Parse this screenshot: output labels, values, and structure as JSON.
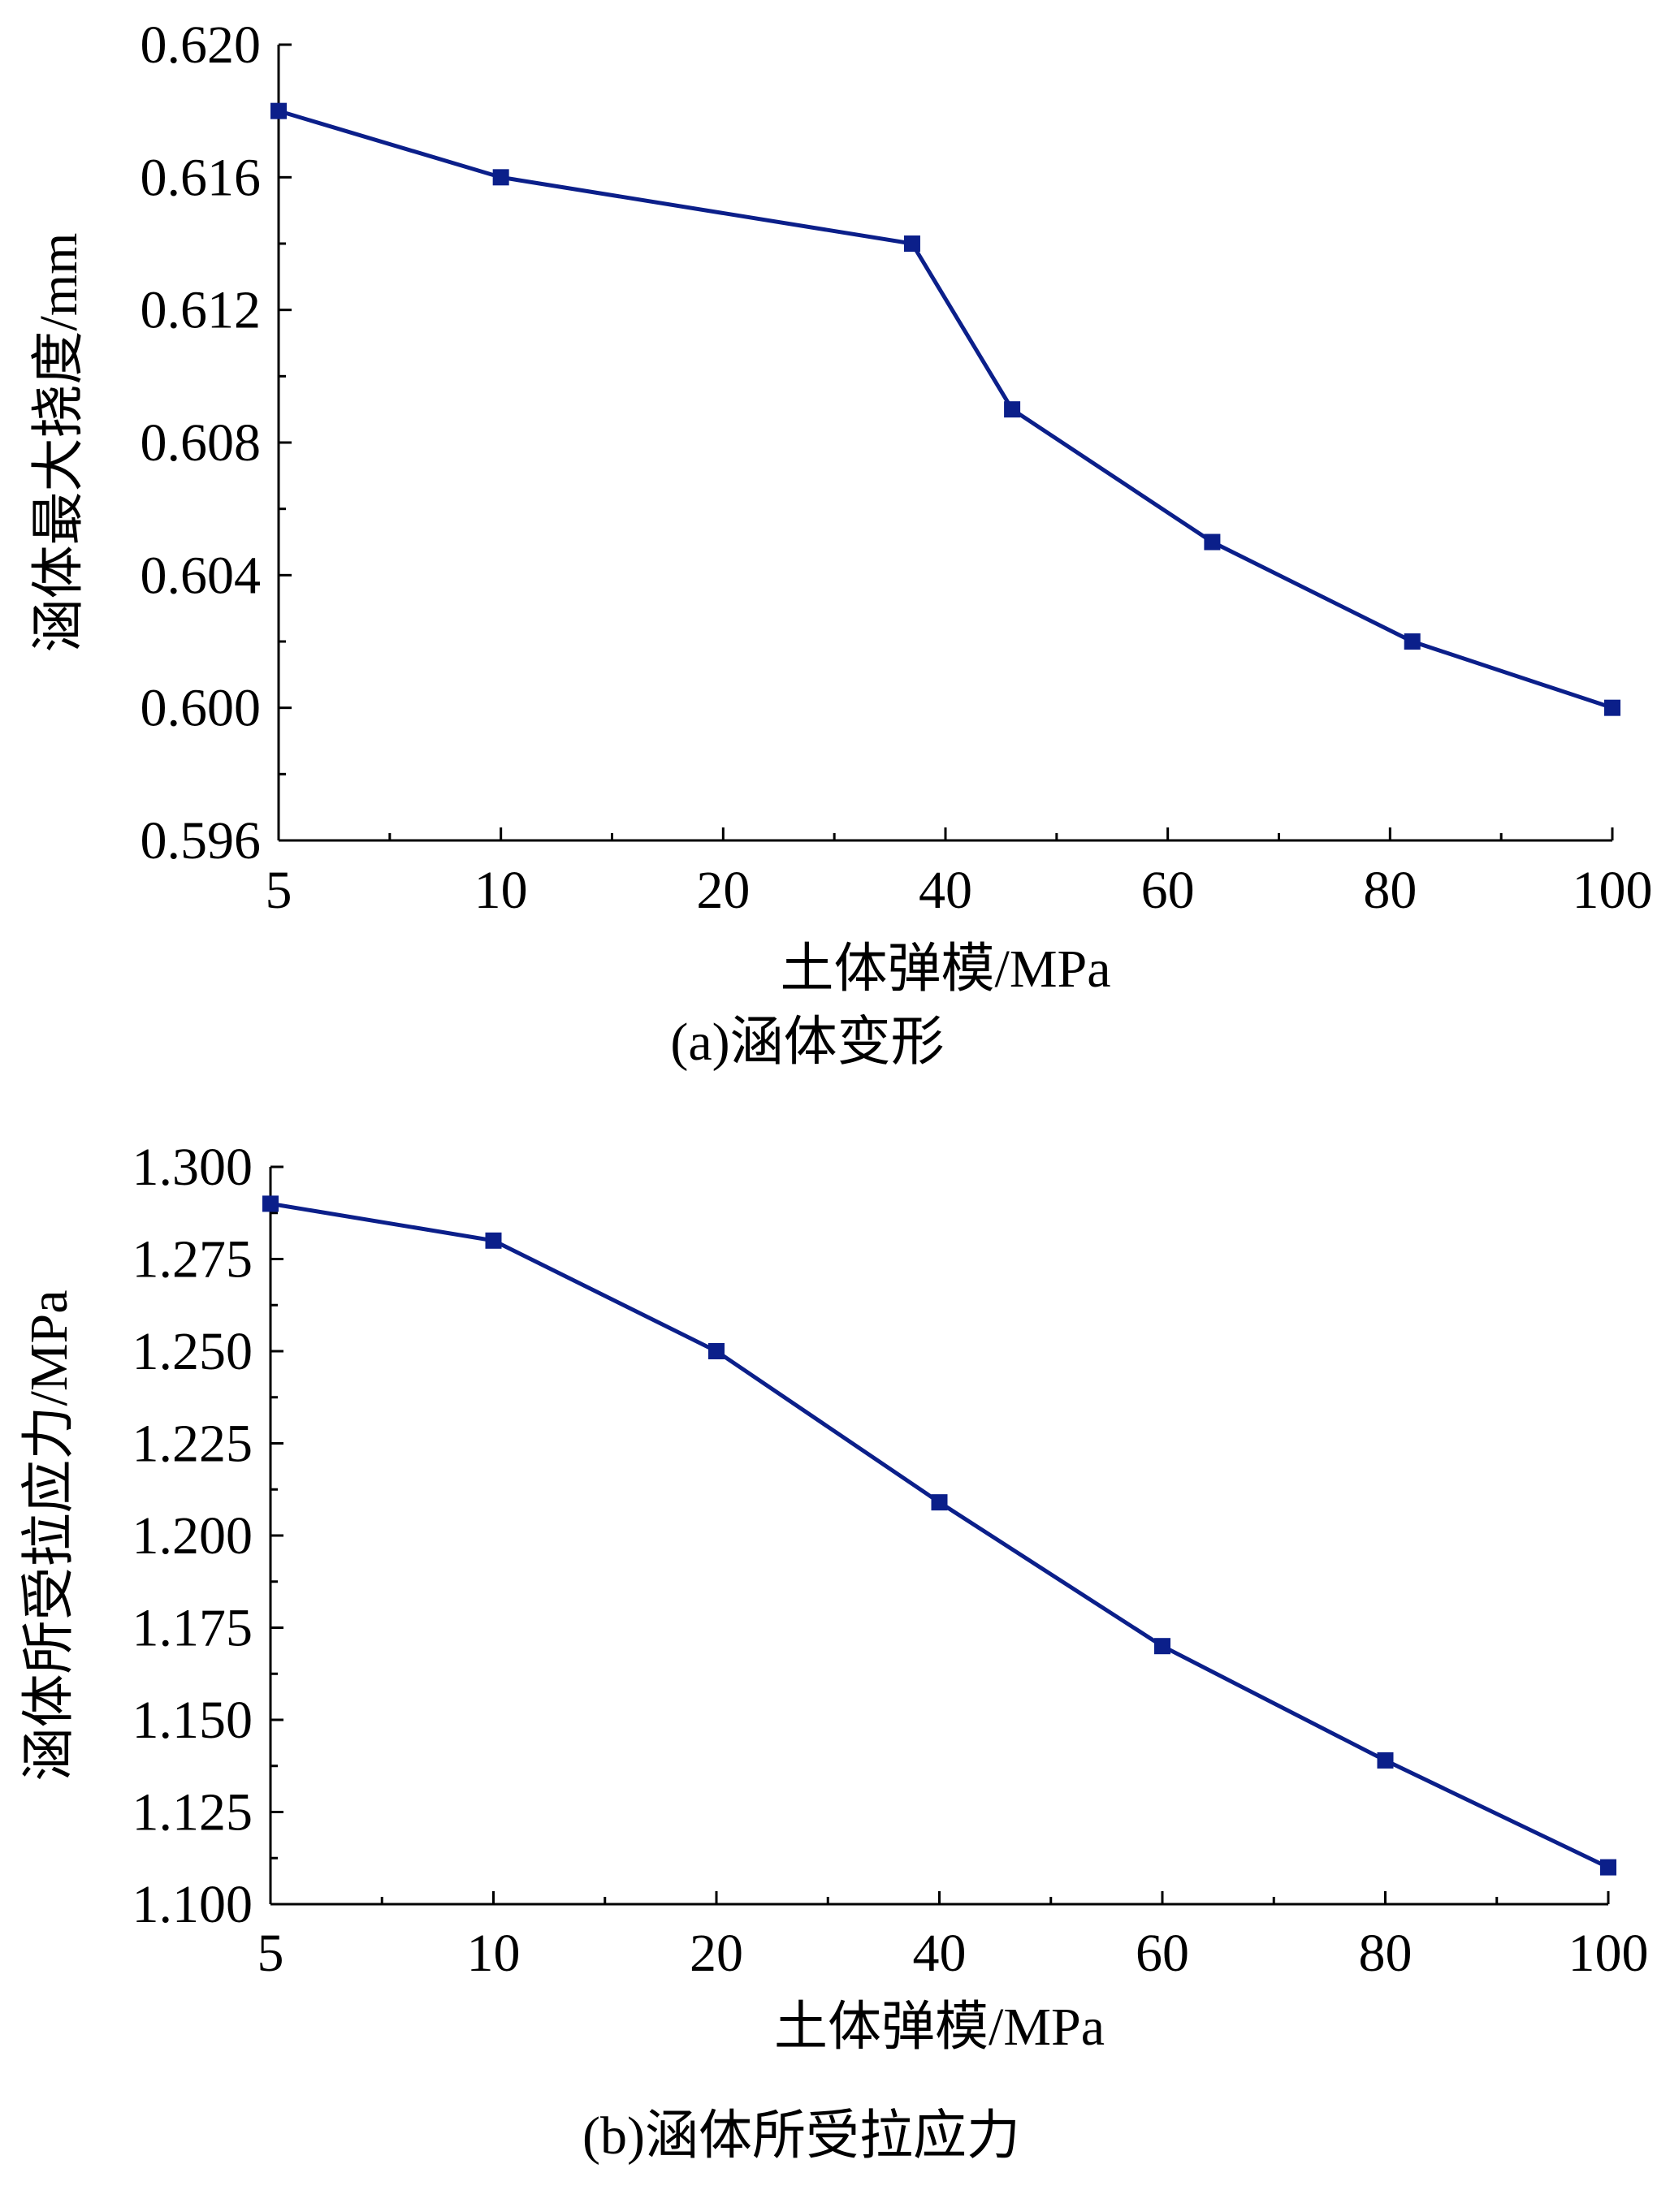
{
  "chart_data": [
    {
      "type": "line",
      "categories": [
        "5",
        "10",
        "20",
        "40",
        "60",
        "80",
        "100"
      ],
      "series": [
        {
          "values": [
            0.618,
            0.616,
            0.614,
            0.609,
            0.605,
            0.602,
            0.6
          ]
        }
      ],
      "title": "",
      "xlabel": "土体弹模/MPa",
      "ylabel": "涵体最大挠度/mm",
      "ylim": [
        0.596,
        0.62
      ],
      "yticks": [
        "0.596",
        "0.600",
        "0.604",
        "0.608",
        "0.612",
        "0.616",
        "0.620"
      ],
      "caption": "(a)涵体变形",
      "grid": false,
      "color": "#0b1f8a"
    },
    {
      "type": "line",
      "categories": [
        "5",
        "10",
        "20",
        "40",
        "60",
        "80",
        "100"
      ],
      "series": [
        {
          "values": [
            1.29,
            1.28,
            1.25,
            1.209,
            1.17,
            1.139,
            1.11
          ]
        }
      ],
      "title": "",
      "xlabel": "土体弹模/MPa",
      "ylabel": "涵体所受拉应力/MPa",
      "ylim": [
        1.1,
        1.3
      ],
      "yticks": [
        "1.100",
        "1.125",
        "1.150",
        "1.175",
        "1.200",
        "1.225",
        "1.250",
        "1.275",
        "1.300"
      ],
      "caption": "(b)涵体所受拉应力",
      "grid": false,
      "color": "#0b1f8a"
    }
  ]
}
